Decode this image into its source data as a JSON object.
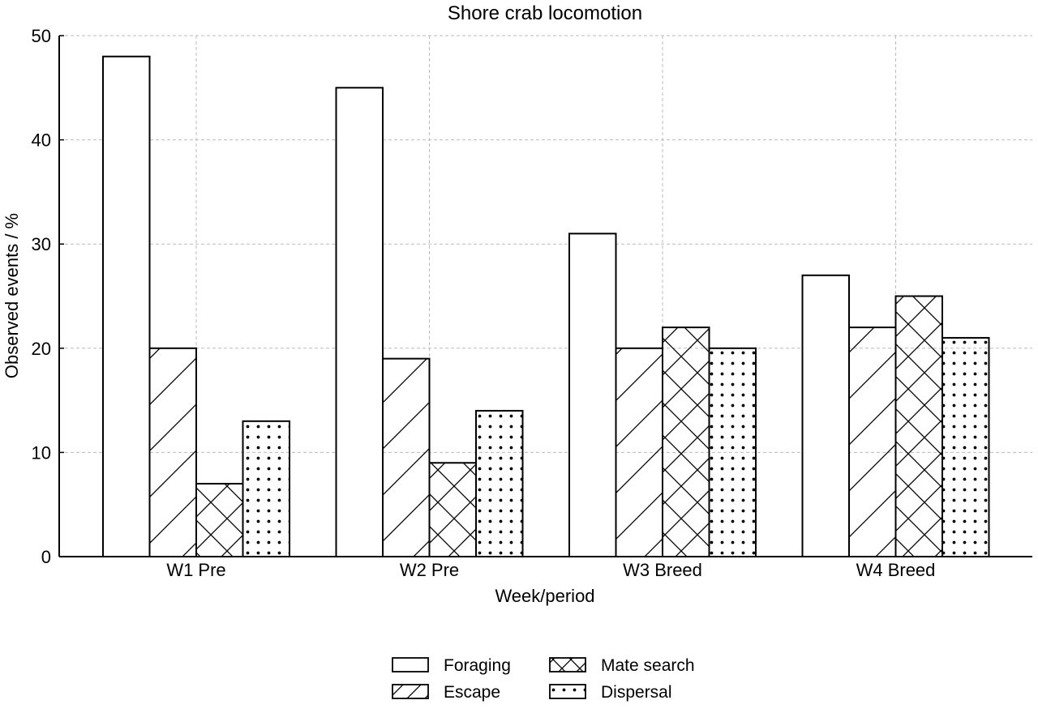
{
  "chart_data": {
    "type": "bar",
    "title": "Shore crab locomotion",
    "xlabel": "Week/period",
    "ylabel": "Observed events / %",
    "categories": [
      "W1 Pre",
      "W2 Pre",
      "W3 Breed",
      "W4 Breed"
    ],
    "series": [
      {
        "name": "Foraging",
        "values": [
          48,
          45,
          31,
          27
        ],
        "pattern": "none"
      },
      {
        "name": "Escape",
        "values": [
          20,
          19,
          20,
          22
        ],
        "pattern": "diagonal"
      },
      {
        "name": "Mate search",
        "values": [
          7,
          9,
          22,
          25
        ],
        "pattern": "crosshatch"
      },
      {
        "name": "Dispersal",
        "values": [
          13,
          14,
          20,
          21
        ],
        "pattern": "dots"
      }
    ],
    "ylim": [
      0,
      50
    ],
    "yticks": [
      "0",
      "10",
      "20",
      "30",
      "40",
      "50"
    ],
    "grid": true,
    "legend_position": "bottom-center",
    "colors": {
      "bar_fill": "#ffffff",
      "bar_edge": "#000000",
      "grid": "#bbbbbb"
    }
  }
}
